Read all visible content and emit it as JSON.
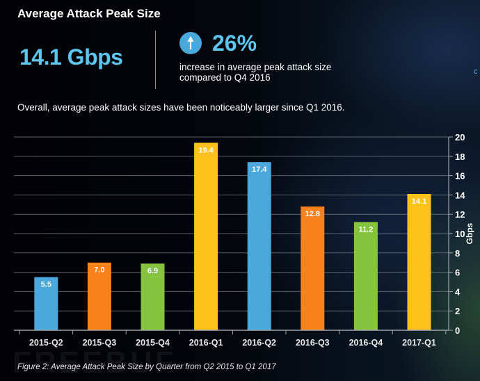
{
  "header": {
    "title": "Average Attack Peak Size",
    "big_value": "14.1 Gbps",
    "change_icon": "arrow-up-icon",
    "change_value": "26%",
    "change_desc": "increase in average peak attack size compared to Q4 2016",
    "edge_fragment": "c"
  },
  "subtitle": "Overall, average peak attack sizes have been noticeably larger since Q1 2016.",
  "caption": "Figure 2: Average Attack Peak Size by Quarter from Q2 2015 to Q1 2017",
  "watermark": "FREEBUF",
  "colors": {
    "blue": "#4aa8dc",
    "orange": "#f7821b",
    "green": "#86c440",
    "yellow": "#fcc21b",
    "accent": "#5bc6ef"
  },
  "chart_data": {
    "type": "bar",
    "title": "Average Attack Peak Size",
    "xlabel": "",
    "ylabel": "Gbps",
    "ylim": [
      0,
      20
    ],
    "yticks": [
      0,
      2,
      4,
      6,
      8,
      10,
      12,
      14,
      16,
      18,
      20
    ],
    "y_axis_side": "right",
    "grid": true,
    "legend": "none",
    "categories": [
      "2015-Q2",
      "2015-Q3",
      "2015-Q4",
      "2016-Q1",
      "2016-Q2",
      "2016-Q3",
      "2016-Q4",
      "2017-Q1"
    ],
    "values": [
      5.5,
      7.0,
      6.9,
      19.4,
      17.4,
      12.8,
      11.2,
      14.1
    ],
    "data_labels": [
      "5.5",
      "7.0",
      "6.9",
      "19.4",
      "17.4",
      "12.8",
      "11.2",
      "14.1"
    ],
    "bar_colors": [
      "#4aa8dc",
      "#f7821b",
      "#86c440",
      "#fcc21b",
      "#4aa8dc",
      "#f7821b",
      "#86c440",
      "#fcc21b"
    ]
  }
}
